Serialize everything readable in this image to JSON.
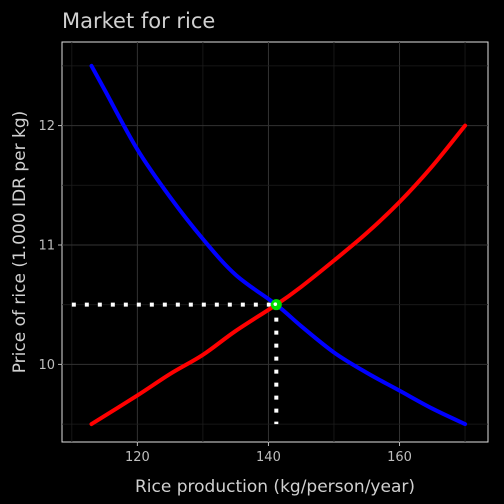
{
  "chart_data": {
    "type": "line",
    "title": "Market for rice",
    "xlabel": "Rice production (kg/person/year)",
    "ylabel": "Price of rice (1.000 IDR per kg)",
    "xlim": [
      108.5,
      173.5
    ],
    "ylim": [
      9.35,
      12.7
    ],
    "xticks": [
      120,
      140,
      160
    ],
    "yticks": [
      10,
      11,
      12
    ],
    "grid": true,
    "background": "#000000",
    "series": [
      {
        "color": "#0000ff",
        "points": [
          [
            113,
            12.5
          ],
          [
            115,
            12.3
          ],
          [
            120,
            11.8
          ],
          [
            125,
            11.4
          ],
          [
            130,
            11.05
          ],
          [
            135,
            10.75
          ],
          [
            141.2,
            10.5
          ],
          [
            145,
            10.32
          ],
          [
            150,
            10.1
          ],
          [
            155,
            9.93
          ],
          [
            160,
            9.78
          ],
          [
            165,
            9.63
          ],
          [
            170,
            9.5
          ]
        ]
      },
      {
        "color": "#ff0000",
        "points": [
          [
            113,
            9.5
          ],
          [
            120,
            9.74
          ],
          [
            125,
            9.92
          ],
          [
            130,
            10.08
          ],
          [
            135,
            10.28
          ],
          [
            141.2,
            10.5
          ],
          [
            145,
            10.65
          ],
          [
            150,
            10.87
          ],
          [
            155,
            11.1
          ],
          [
            160,
            11.36
          ],
          [
            165,
            11.66
          ],
          [
            170,
            12.0
          ]
        ]
      }
    ],
    "equilibrium": {
      "x": 141.2,
      "y": 10.5,
      "color": "#00dd00"
    },
    "guides": {
      "x_start": 110,
      "y_bottom": 9.5,
      "color": "#ffffff"
    }
  }
}
